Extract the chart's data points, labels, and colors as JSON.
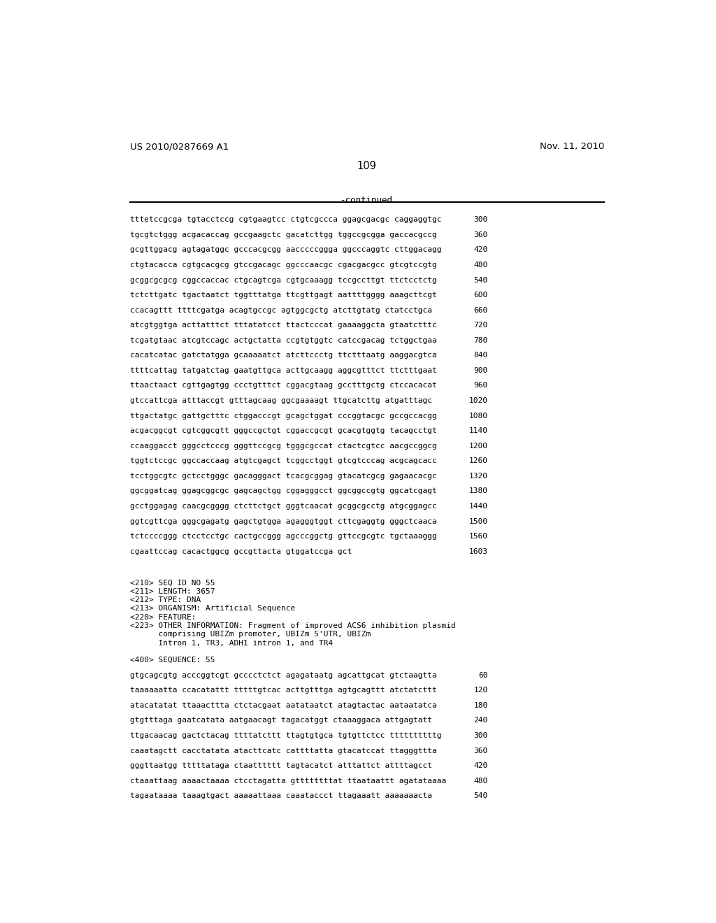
{
  "header_left": "US 2010/0287669 A1",
  "header_right": "Nov. 11, 2010",
  "page_number": "109",
  "continued_label": "-continued",
  "background_color": "#ffffff",
  "text_color": "#000000",
  "font_size_header": 9.5,
  "font_size_body": 8.0,
  "font_size_page": 10.5,
  "sequence_lines": [
    [
      "tttetccgcga tgtacctccg cgtgaagtcc ctgtcgccca ggagcgacgc caggaggtgc",
      "300"
    ],
    [
      "tgcgtctggg acgacaccag gccgaagctc gacatcttgg tggccgcgga gaccacgccg",
      "360"
    ],
    [
      "gcgttggacg agtagatggc gcccacgcgg aacccccggga ggcccaggtc cttggacagg",
      "420"
    ],
    [
      "ctgtacacca cgtgcacgcg gtccgacagc ggcccaacgc cgacgacgcc gtcgtccgtg",
      "480"
    ],
    [
      "gcggcgcgcg cggccaccac ctgcagtcga cgtgcaaagg tccgccttgt ttctcctctg",
      "540"
    ],
    [
      "tctcttgatc tgactaatct tggtttatga ttcgttgagt aattttgggg aaagcttcgt",
      "600"
    ],
    [
      "ccacagttt ttttcgatga acagtgccgc agtggcgctg atcttgtatg ctatcctgca",
      "660"
    ],
    [
      "atcgtggtga acttatttct tttatatcct ttactcccat gaaaaggcta gtaatctttc",
      "720"
    ],
    [
      "tcgatgtaac atcgtccagc actgctatta ccgtgtggtc catccgacag tctggctgaa",
      "780"
    ],
    [
      "cacatcatac gatctatgga gcaaaaatct atcttccctg ttctttaatg aaggacgtca",
      "840"
    ],
    [
      "ttttcattag tatgatctag gaatgttgca acttgcaagg aggcgtttct ttctttgaat",
      "900"
    ],
    [
      "ttaactaact cgttgagtgg ccctgtttct cggacgtaag gcctttgctg ctccacacat",
      "960"
    ],
    [
      "gtccattcga atttaccgt gtttagcaag ggcgaaaagt ttgcatcttg atgatttagc",
      "1020"
    ],
    [
      "ttgactatgc gattgctttc ctggacccgt gcagctggat cccggtacgc gccgccacgg",
      "1080"
    ],
    [
      "acgacggcgt cgtcggcgtt gggccgctgt cggaccgcgt gcacgtggtg tacagcctgt",
      "1140"
    ],
    [
      "ccaaggacct gggcctcccg gggttccgcg tgggcgccat ctactcgtcc aacgccggcg",
      "1200"
    ],
    [
      "tggtctccgc ggccaccaag atgtcgagct tcggcctggt gtcgtcccag acgcagcacc",
      "1260"
    ],
    [
      "tcctggcgtc gctcctgggc gacagggact tcacgcggag gtacatcgcg gagaacacgc",
      "1320"
    ],
    [
      "ggcggatcag ggagcggcgc gagcagctgg cggagggcct ggcggccgtg ggcatcgagt",
      "1380"
    ],
    [
      "gcctggagag caacgcgggg ctcttctgct gggtcaacat gcggcgcctg atgcggagcc",
      "1440"
    ],
    [
      "ggtcgttcga gggcgagatg gagctgtgga agagggtggt cttcgaggtg gggctcaaca",
      "1500"
    ],
    [
      "tctccccggg ctcctcctgc cactgccggg agcccggctg gttccgcgtc tgctaaaggg",
      "1560"
    ],
    [
      "cgaattccag cacactggcg gccgttacta gtggatccga gct",
      "1603"
    ]
  ],
  "metadata_lines": [
    "<210> SEQ ID NO 55",
    "<211> LENGTH: 3657",
    "<212> TYPE: DNA",
    "<213> ORGANISM: Artificial Sequence",
    "<220> FEATURE:",
    "<223> OTHER INFORMATION: Fragment of improved ACS6 inhibition plasmid",
    "      comprising UBIZm promoter, UBIZm 5'UTR, UBIZm",
    "      Intron 1, TR3, ADH1 intron 1, and TR4"
  ],
  "sequence_label": "<400> SEQUENCE: 55",
  "bottom_sequence_lines": [
    [
      "gtgcagcgtg acccggtcgt gcccctctct agagataatg agcattgcat gtctaagtta",
      "60"
    ],
    [
      "taaaaaatta ccacatattt tttttgtcac acttgtttga agtgcagttt atctatcttt",
      "120"
    ],
    [
      "atacatatat ttaaacttta ctctacgaat aatataatct atagtactac aataatatca",
      "180"
    ],
    [
      "gtgtttaga gaatcatata aatgaacagt tagacatggt ctaaaggaca attgagtatt",
      "240"
    ],
    [
      "ttgacaacag gactctacag ttttatcttt ttagtgtgca tgtgttctcc ttttttttttg",
      "300"
    ],
    [
      "caaatagctt cacctatata atacttcatc cattttatta gtacatccat ttagggttta",
      "360"
    ],
    [
      "gggttaatgg tttttataga ctaatttttt tagtacatct atttattct attttagcct",
      "420"
    ],
    [
      "ctaaattaag aaaactaaaa ctcctagatta gttttttttat ttaataattt agatataaaa",
      "480"
    ],
    [
      "tagaataaaa taaagtgact aaaaattaaa caaataccct ttagaaatt aaaaaaacta",
      "540"
    ]
  ]
}
